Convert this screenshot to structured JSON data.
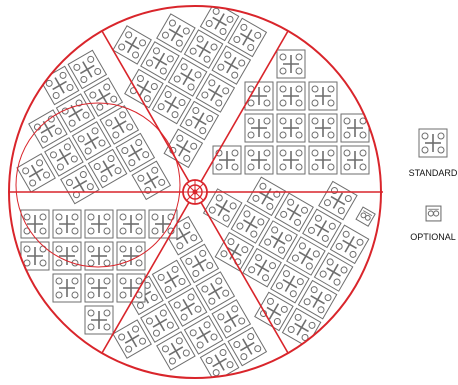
{
  "legend": {
    "standard_label": "STANDARD",
    "optional_label": "OPTIONAL"
  },
  "colors": {
    "circle": "#d9252b",
    "module": "#6e6e6e",
    "module_fill": "#ffffff",
    "background": "#ffffff"
  },
  "icons": {
    "standard": "standard-module-icon",
    "optional": "optional-module-icon",
    "hub": "hub-icon"
  },
  "chart_data": {
    "type": "diagram",
    "sector_count": 6,
    "inner_circle_count": 1,
    "legend_entries": [
      "STANDARD",
      "OPTIONAL"
    ]
  }
}
